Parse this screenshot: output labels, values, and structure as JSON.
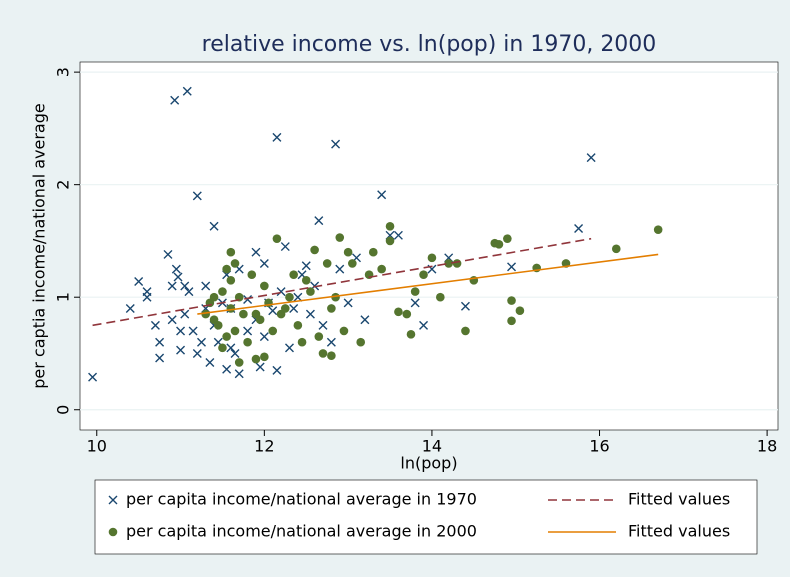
{
  "chart_data": {
    "type": "scatter",
    "title": "relative income vs. ln(pop) in 1970, 2000",
    "x_label": "ln(pop)",
    "y_label": "per captia income/national average",
    "xlim": [
      9.8,
      18.13
    ],
    "ylim": [
      -0.18,
      3.09
    ],
    "xticks": [
      10,
      12,
      14,
      16,
      18
    ],
    "yticks": [
      0,
      1,
      2,
      3
    ],
    "grid": true,
    "legend": "bottom",
    "series": [
      {
        "name": "per capita income/national average in 1970",
        "type": "scatter",
        "marker": "x",
        "color": "#1a476f",
        "x": [
          9.95,
          10.4,
          10.5,
          10.6,
          10.6,
          10.7,
          10.75,
          10.75,
          10.85,
          10.9,
          10.93,
          10.95,
          10.97,
          11.0,
          11.0,
          11.05,
          11.05,
          11.08,
          11.1,
          11.15,
          11.2,
          11.2,
          11.25,
          11.3,
          11.35,
          11.4,
          11.5,
          11.55,
          11.55,
          11.6,
          11.7,
          11.8,
          11.9,
          11.95,
          12.0,
          12.05,
          12.15,
          12.15,
          12.2,
          12.25,
          12.3,
          12.35,
          12.4,
          12.5,
          12.6,
          12.65,
          12.7,
          12.85,
          12.9,
          13.0,
          13.2,
          13.4,
          13.5,
          13.6,
          13.8,
          13.9,
          14.0,
          14.2,
          14.4,
          14.95,
          15.75,
          15.9,
          11.4,
          11.6,
          11.7,
          11.9,
          12.1,
          11.3,
          11.65,
          12.0,
          12.55,
          12.45,
          13.1,
          12.8,
          11.8,
          10.9,
          11.45
        ],
        "values": [
          0.29,
          0.9,
          1.14,
          1.05,
          1.0,
          0.75,
          0.6,
          0.46,
          1.38,
          1.1,
          2.75,
          1.25,
          1.18,
          0.7,
          0.53,
          0.85,
          1.1,
          2.83,
          1.05,
          0.7,
          1.9,
          0.5,
          0.6,
          1.1,
          0.42,
          1.63,
          0.95,
          1.2,
          0.36,
          0.55,
          0.32,
          0.7,
          1.4,
          0.38,
          1.3,
          0.95,
          2.42,
          0.35,
          1.05,
          1.45,
          0.55,
          0.9,
          1.0,
          1.28,
          1.1,
          1.68,
          0.75,
          2.36,
          1.25,
          0.95,
          0.8,
          1.91,
          1.55,
          1.55,
          0.95,
          0.75,
          1.25,
          1.35,
          0.92,
          1.27,
          1.61,
          2.24,
          0.75,
          0.9,
          1.25,
          0.8,
          0.88,
          0.9,
          0.5,
          0.65,
          0.85,
          1.2,
          1.35,
          0.6,
          0.98,
          0.8,
          0.6
        ]
      },
      {
        "name": "per capita income/national average in 2000",
        "type": "scatter",
        "marker": "circle",
        "color": "#55752f",
        "x": [
          11.3,
          11.35,
          11.4,
          11.4,
          11.45,
          11.5,
          11.5,
          11.55,
          11.6,
          11.6,
          11.6,
          11.65,
          11.65,
          11.7,
          11.7,
          11.75,
          11.8,
          11.85,
          11.9,
          11.95,
          12.0,
          12.0,
          12.05,
          12.1,
          12.15,
          12.2,
          12.3,
          12.35,
          12.4,
          12.5,
          12.55,
          12.6,
          12.65,
          12.7,
          12.75,
          12.8,
          12.85,
          12.9,
          12.95,
          13.0,
          13.05,
          13.15,
          13.3,
          13.4,
          13.5,
          13.5,
          13.6,
          13.75,
          13.8,
          13.9,
          14.0,
          14.2,
          14.3,
          14.4,
          14.5,
          14.75,
          14.8,
          14.9,
          14.95,
          14.95,
          15.05,
          15.25,
          15.6,
          16.2,
          16.7,
          12.8,
          12.45,
          11.9,
          12.25,
          13.25,
          13.7,
          14.1,
          11.55
        ],
        "values": [
          0.85,
          0.95,
          0.8,
          1.0,
          0.75,
          1.05,
          0.55,
          1.25,
          1.4,
          1.15,
          0.9,
          0.7,
          1.3,
          0.42,
          1.0,
          0.85,
          0.6,
          1.2,
          0.45,
          0.8,
          0.47,
          1.1,
          0.95,
          0.7,
          1.52,
          0.85,
          1.0,
          1.2,
          0.75,
          1.15,
          1.05,
          1.42,
          0.65,
          0.5,
          1.3,
          0.9,
          1.0,
          1.53,
          0.7,
          1.4,
          1.3,
          0.6,
          1.4,
          1.25,
          1.63,
          1.5,
          0.87,
          0.67,
          1.05,
          1.2,
          1.35,
          1.3,
          1.3,
          0.7,
          1.15,
          1.48,
          1.47,
          1.52,
          0.97,
          0.79,
          0.88,
          1.26,
          1.3,
          1.43,
          1.6,
          0.48,
          0.6,
          0.85,
          0.9,
          1.2,
          0.85,
          1.0,
          0.65
        ]
      },
      {
        "name": "Fitted values",
        "type": "line",
        "dash": true,
        "color": "#90353b",
        "x": [
          9.95,
          15.9
        ],
        "values": [
          0.75,
          1.52
        ]
      },
      {
        "name": "Fitted values",
        "type": "line",
        "dash": false,
        "color": "#e37e00",
        "x": [
          11.2,
          16.7
        ],
        "values": [
          0.85,
          1.38
        ]
      }
    ]
  }
}
